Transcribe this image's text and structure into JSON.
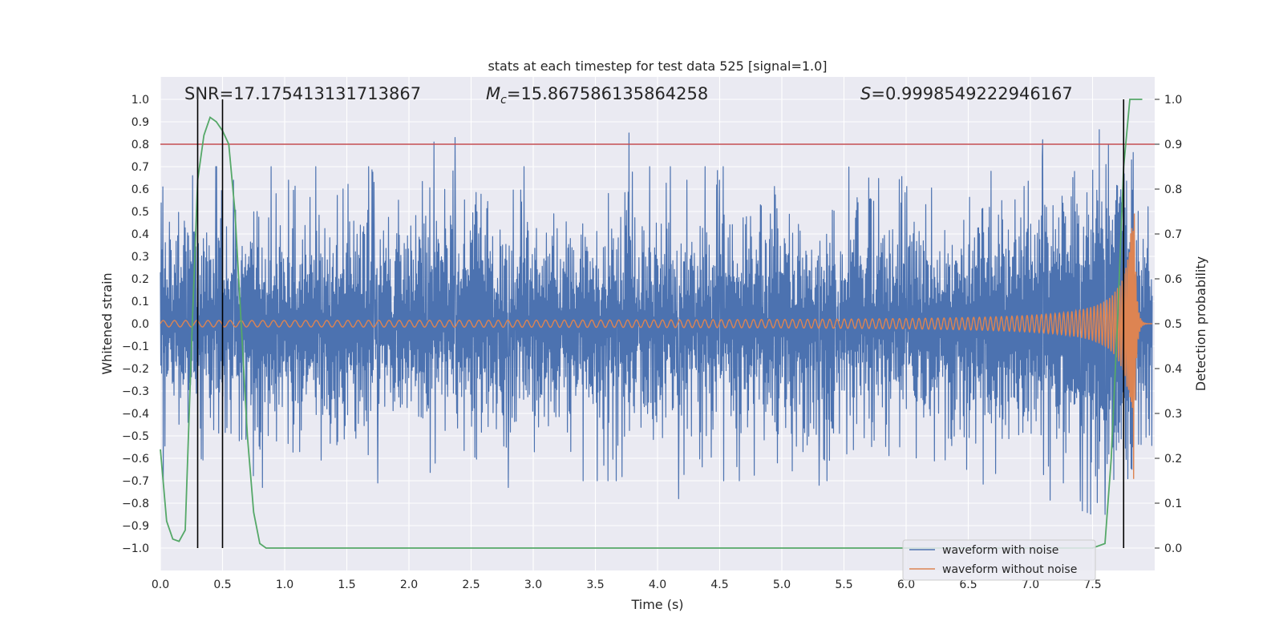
{
  "chart_data": {
    "type": "line",
    "title": "stats at each timestep for test data 525 [signal=1.0]",
    "xlabel": "Time (s)",
    "ylabel": "Whitened strain",
    "ylabel_right": "Detection probability",
    "xlim": [
      0.0,
      8.0
    ],
    "ylim": [
      -1.1,
      1.1
    ],
    "ylim_right": [
      -0.05,
      1.05
    ],
    "xticks": [
      "0.0",
      "0.5",
      "1.0",
      "1.5",
      "2.0",
      "2.5",
      "3.0",
      "3.5",
      "4.0",
      "4.5",
      "5.0",
      "5.5",
      "6.0",
      "6.5",
      "7.0",
      "7.5"
    ],
    "yticks": [
      "1.0",
      "0.9",
      "0.8",
      "0.7",
      "0.6",
      "0.5",
      "0.4",
      "0.3",
      "0.2",
      "0.1",
      "0.0",
      "−0.1",
      "−0.2",
      "−0.3",
      "−0.4",
      "−0.5",
      "−0.6",
      "−0.7",
      "−0.8",
      "−0.9",
      "−1.0"
    ],
    "yticks_right": [
      "1.0",
      "0.9",
      "0.8",
      "0.7",
      "0.6",
      "0.5",
      "0.4",
      "0.3",
      "0.2",
      "0.1",
      "0.0"
    ],
    "grid": true,
    "legend_position": "bottom-right",
    "annotations": {
      "snr_label": "SNR",
      "snr_value": "17.175413131713867",
      "mc_symbol": "M",
      "mc_subscript": "c",
      "mc_value": "15.867586135864258",
      "s_symbol": "S",
      "s_value": "0.9998549222946167"
    },
    "threshold_line": {
      "y_right": 0.9,
      "color": "#c44e52"
    },
    "vertical_markers_x": [
      0.3,
      0.5,
      7.75
    ],
    "series": [
      {
        "name": "waveform with noise",
        "color": "#4c72b0",
        "description": "noise envelope approx ±0.45, peak glitches",
        "spikes": [
          {
            "x": 0.02,
            "y": 0.61
          },
          {
            "x": 0.26,
            "y": 0.66
          },
          {
            "x": 0.59,
            "y": 0.64
          },
          {
            "x": 1.72,
            "y": 0.63
          },
          {
            "x": 2.2,
            "y": 0.81
          },
          {
            "x": 2.37,
            "y": 0.83
          },
          {
            "x": 3.77,
            "y": 0.85
          },
          {
            "x": 4.5,
            "y": 0.64
          },
          {
            "x": 7.1,
            "y": 0.82
          },
          {
            "x": 0.82,
            "y": -0.73
          },
          {
            "x": 1.75,
            "y": -0.71
          },
          {
            "x": 2.8,
            "y": -0.73
          },
          {
            "x": 4.17,
            "y": -0.78
          },
          {
            "x": 5.3,
            "y": -0.72
          },
          {
            "x": 7.4,
            "y": -0.79
          },
          {
            "x": 7.6,
            "y": -0.85
          }
        ],
        "envelope": 0.43
      },
      {
        "name": "waveform without noise",
        "color": "#dd8452",
        "description": "chirp growing toward merger",
        "merger_time": 7.83,
        "peak_amplitude": 0.6
      },
      {
        "name": "Detection probability",
        "color": "#55a868",
        "axis": "right",
        "x": [
          0.0,
          0.05,
          0.1,
          0.15,
          0.2,
          0.25,
          0.3,
          0.35,
          0.4,
          0.45,
          0.5,
          0.55,
          0.6,
          0.65,
          0.7,
          0.75,
          0.8,
          0.85,
          0.9,
          7.5,
          7.6,
          7.65,
          7.7,
          7.75,
          7.8,
          7.85,
          7.9
        ],
        "y": [
          0.22,
          0.06,
          0.02,
          0.015,
          0.04,
          0.45,
          0.82,
          0.92,
          0.96,
          0.95,
          0.93,
          0.9,
          0.75,
          0.5,
          0.25,
          0.08,
          0.01,
          0.0,
          0.0,
          0.0,
          0.01,
          0.2,
          0.5,
          0.85,
          1.0,
          1.0,
          1.0
        ]
      }
    ]
  }
}
